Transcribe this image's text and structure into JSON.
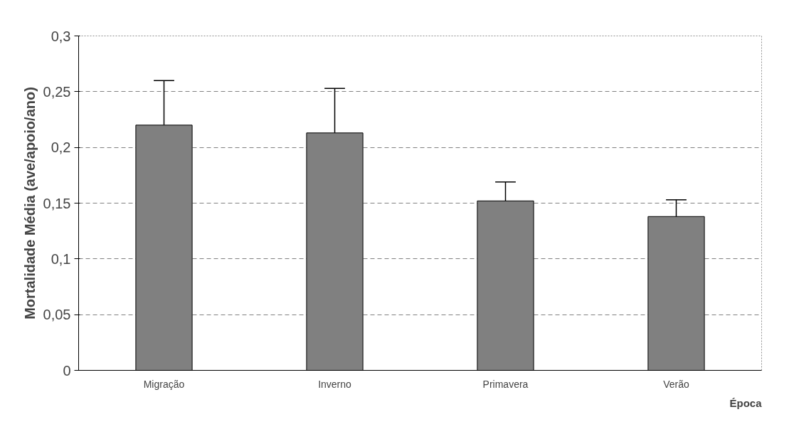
{
  "chart_data": {
    "type": "bar",
    "xlabel": "Época",
    "ylabel": "Mortalidade Média (ave/apoio/ano)",
    "categories": [
      "Migração",
      "Inverno",
      "Primavera",
      "Verão"
    ],
    "values": [
      0.22,
      0.213,
      0.152,
      0.138
    ],
    "errors": [
      [
        0.22,
        0.26
      ],
      [
        0.213,
        0.253
      ],
      [
        0.152,
        0.169
      ],
      [
        0.138,
        0.153
      ]
    ],
    "color": "#808080",
    "ylim": [
      0,
      0.3
    ],
    "yticks": [
      {
        "value": 0,
        "label": "0"
      },
      {
        "value": 0.05,
        "label": "0,05"
      },
      {
        "value": 0.1,
        "label": "0,1"
      },
      {
        "value": 0.15,
        "label": "0,15"
      },
      {
        "value": 0.2,
        "label": "0,2"
      },
      {
        "value": 0.25,
        "label": "0,25"
      },
      {
        "value": 0.3,
        "label": "0,3"
      }
    ],
    "grid": "y"
  }
}
